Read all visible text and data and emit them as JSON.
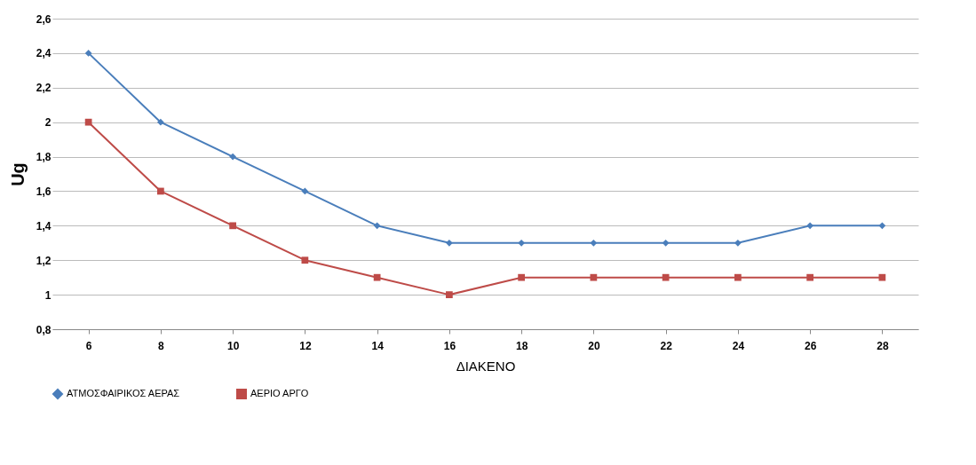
{
  "chart_data": {
    "type": "line",
    "xlabel": "ΔΙΑΚΕΝΟ",
    "ylabel": "Ug",
    "categories": [
      "6",
      "8",
      "10",
      "12",
      "14",
      "16",
      "18",
      "20",
      "22",
      "24",
      "26",
      "28"
    ],
    "series": [
      {
        "name": "ΑΤΜΟΣΦΑΙΡΙΚΟΣ ΑΕΡΑΣ",
        "color": "#4a7ebb",
        "marker": "diamond",
        "values": [
          2.4,
          2.0,
          1.8,
          1.6,
          1.4,
          1.3,
          1.3,
          1.3,
          1.3,
          1.3,
          1.4,
          1.4
        ]
      },
      {
        "name": "ΑΕΡΙΟ ΑΡΓΟ",
        "color": "#be4b48",
        "marker": "square",
        "values": [
          2.0,
          1.6,
          1.4,
          1.2,
          1.1,
          1.0,
          1.1,
          1.1,
          1.1,
          1.1,
          1.1,
          1.1
        ]
      }
    ],
    "ylim": [
      0.8,
      2.6
    ],
    "yticks": [
      {
        "value": 0.8,
        "label": "0,8"
      },
      1,
      {
        "value": 1.2,
        "label": "1,2"
      },
      {
        "value": 1.4,
        "label": "1,4"
      },
      {
        "value": 1.6,
        "label": "1,6"
      },
      {
        "value": 1.8,
        "label": "1,8"
      },
      2,
      {
        "value": 2.2,
        "label": "2,2"
      },
      {
        "value": 2.4,
        "label": "2,4"
      },
      {
        "value": 2.6,
        "label": "2,6"
      }
    ],
    "grid": "y",
    "legend": "bottom",
    "line_style": "solid"
  }
}
